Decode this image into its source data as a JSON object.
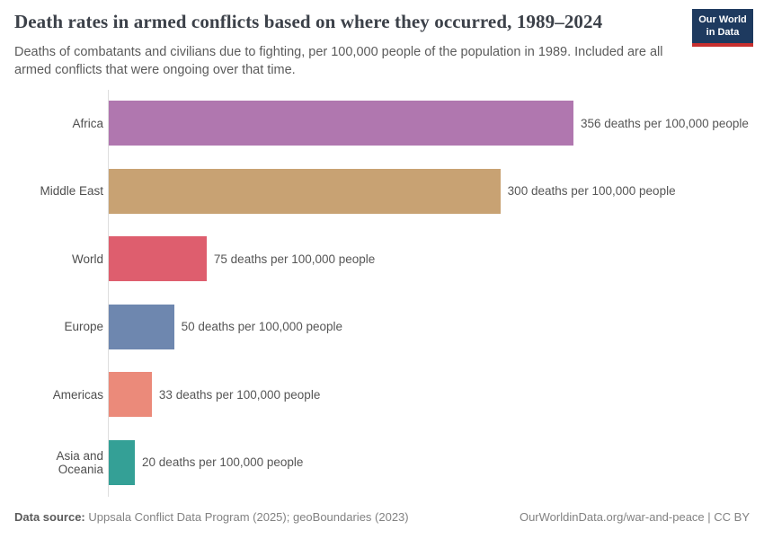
{
  "header": {
    "title": "Death rates in armed conflicts based on where they occurred, 1989–2024",
    "subtitle": "Deaths of combatants and civilians due to fighting, per 100,000 people of the population in 1989. Included are all armed conflicts that were ongoing over that time.",
    "logo": {
      "line1": "Our World",
      "line2": "in Data",
      "background_color": "#1e3a5f",
      "accent_color": "#c8302f"
    }
  },
  "chart_data": {
    "type": "bar",
    "orientation": "horizontal",
    "title": "Death rates in armed conflicts based on where they occurred, 1989–2024",
    "xlabel": "",
    "ylabel": "",
    "xlim": [
      0,
      356
    ],
    "grid": false,
    "legend": false,
    "categories": [
      "Africa",
      "Middle East",
      "World",
      "Europe",
      "Americas",
      "Asia and Oceania"
    ],
    "values": [
      356,
      300,
      75,
      50,
      33,
      20
    ],
    "value_labels": [
      "356 deaths per 100,000 people",
      "300 deaths per 100,000 people",
      "75 deaths per 100,000 people",
      "50 deaths per 100,000 people",
      "33 deaths per 100,000 people",
      "20 deaths per 100,000 people"
    ],
    "bar_colors": [
      "#b077af",
      "#c8a273",
      "#de5e6e",
      "#6e87af",
      "#eb8a7a",
      "#34a096"
    ]
  },
  "footer": {
    "datasource_label": "Data source:",
    "datasource_text": " Uppsala Conflict Data Program (2025); geoBoundaries (2023)",
    "right_text": "OurWorldinData.org/war-and-peace | CC BY"
  }
}
